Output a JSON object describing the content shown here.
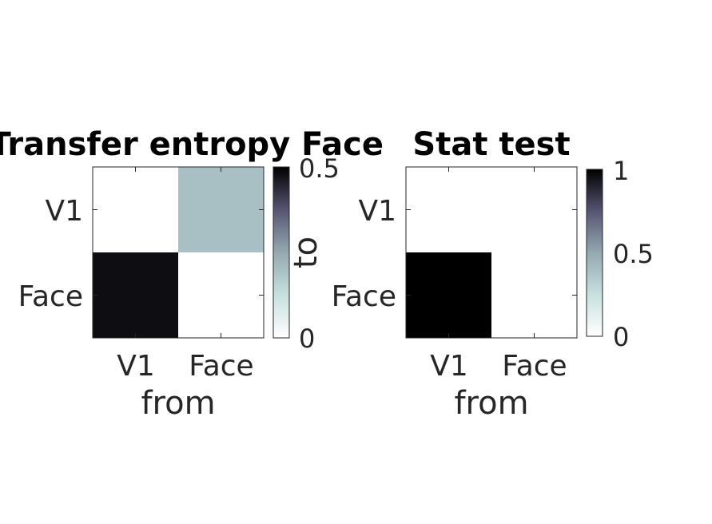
{
  "chart_data": [
    {
      "type": "heatmap",
      "title": "Transfer entropy Face",
      "xlabel": "from",
      "ylabel": "to",
      "x_categories": [
        "V1",
        "Face"
      ],
      "y_categories": [
        "V1",
        "Face"
      ],
      "values": [
        [
          0,
          0.2
        ],
        [
          0.48,
          0
        ]
      ],
      "colorbar": {
        "min": 0,
        "max": 0.5,
        "ticks": [
          "0",
          "0.5"
        ],
        "label": "to"
      },
      "colormap": "bone-reversed"
    },
    {
      "type": "heatmap",
      "title": "Stat test",
      "xlabel": "from",
      "x_categories": [
        "V1",
        "Face"
      ],
      "y_categories": [
        "V1",
        "Face"
      ],
      "values": [
        [
          0,
          0
        ],
        [
          1,
          0
        ]
      ],
      "colorbar": {
        "min": 0,
        "max": 1,
        "ticks": [
          "0",
          "0.5",
          "1"
        ]
      },
      "colormap": "bone-reversed"
    }
  ]
}
